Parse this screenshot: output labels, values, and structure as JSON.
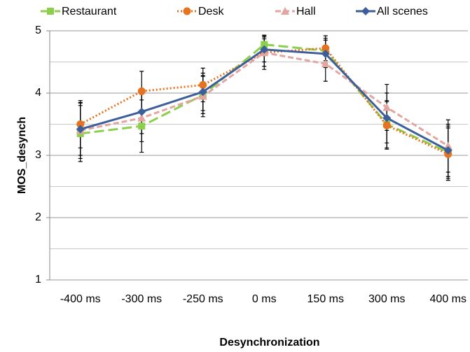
{
  "chart_data": {
    "type": "line",
    "x_label": "Desynchronization",
    "y_label": "MOS_desynch",
    "categories": [
      "-400 ms",
      "-300 ms",
      "-250 ms",
      "0 ms",
      "150 ms",
      "300 ms",
      "400 ms"
    ],
    "series": [
      {
        "name": "Restaurant",
        "color": "#8ccf4d",
        "dash": "14,6",
        "marker": "square",
        "values": [
          3.35,
          3.47,
          3.97,
          4.78,
          4.68,
          3.5,
          3.05
        ],
        "errors": [
          0.45,
          0.42,
          0.3,
          0.15,
          0.2,
          0.38,
          0.42
        ]
      },
      {
        "name": "Desk",
        "color": "#e5731f",
        "dash": "2,3",
        "marker": "circle",
        "values": [
          3.5,
          4.03,
          4.13,
          4.65,
          4.72,
          3.48,
          3.02
        ],
        "errors": [
          0.38,
          0.32,
          0.27,
          0.27,
          0.2,
          0.38,
          0.42
        ]
      },
      {
        "name": "Hall",
        "color": "#e3a5a0",
        "dash": "8,4",
        "marker": "triangle",
        "values": [
          3.4,
          3.6,
          3.95,
          4.65,
          4.47,
          3.77,
          3.15
        ],
        "errors": [
          0.45,
          0.38,
          0.33,
          0.22,
          0.28,
          0.37,
          0.42
        ]
      },
      {
        "name": "All scenes",
        "color": "#3c5f9a",
        "dash": "",
        "marker": "diamond",
        "values": [
          3.42,
          3.7,
          4.02,
          4.7,
          4.63,
          3.6,
          3.08
        ],
        "errors": [
          0.42,
          0.35,
          0.3,
          0.2,
          0.22,
          0.4,
          0.42
        ]
      }
    ],
    "ylim": [
      1,
      5
    ],
    "yticks": [
      1,
      2,
      3,
      4,
      5
    ],
    "minor_yticks": [
      1.5,
      2.5,
      3.5,
      4.5
    ],
    "grid": true,
    "legend": "top"
  }
}
